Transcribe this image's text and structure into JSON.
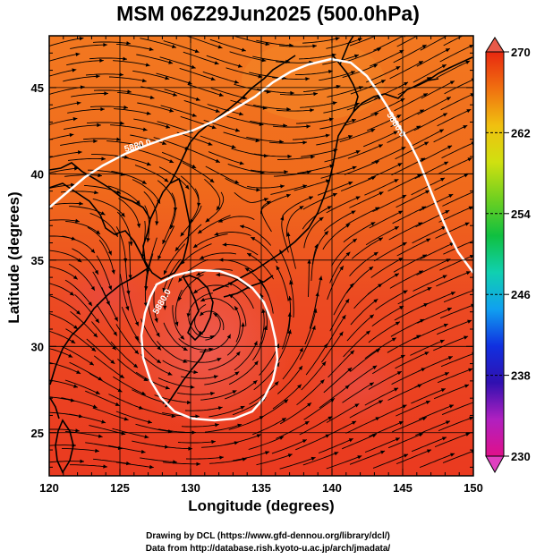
{
  "header": {
    "title": "MSM 06Z29Jun2025 (500.0hPa)"
  },
  "axes": {
    "xlabel": "Longitude (degrees)",
    "ylabel": "Latitude  (degrees)",
    "xlim": [
      120,
      150
    ],
    "ylim": [
      22.5,
      48
    ],
    "xticks": [
      "120",
      "125",
      "130",
      "135",
      "140",
      "145",
      "150"
    ],
    "yticks": [
      "25",
      "30",
      "35",
      "40",
      "45"
    ]
  },
  "colorbar": {
    "min": 230,
    "max": 270,
    "labels": [
      "270",
      "262",
      "254",
      "246",
      "238",
      "230"
    ],
    "colors": [
      "#e0108a",
      "#b020c0",
      "#3010b0",
      "#1030e0",
      "#10a0f0",
      "#10d0b0",
      "#10c040",
      "#70d020",
      "#d0e010",
      "#f0c010",
      "#f07010",
      "#e82810"
    ]
  },
  "map": {
    "contour_label": "5880.0",
    "field_note": ""
  },
  "credits": {
    "line1": "Drawing by DCL (https://www.gfd-dennou.org/library/dcl/)",
    "line2": "Data from http://database.rish.kyoto-u.ac.jp/arch/jmadata/"
  }
}
